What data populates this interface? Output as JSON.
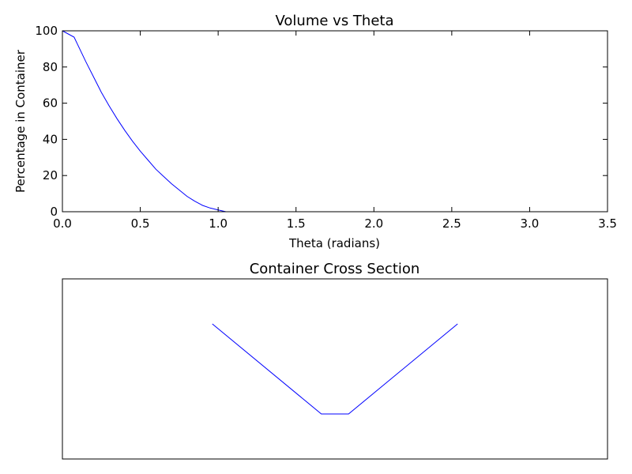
{
  "chart_data": [
    {
      "type": "line",
      "title": "Volume vs Theta",
      "xlabel": "Theta (radians)",
      "ylabel": "Percentage in Container",
      "xlim": [
        0.0,
        3.5
      ],
      "ylim": [
        0,
        100
      ],
      "xticks": [
        "0.0",
        "0.5",
        "1.0",
        "1.5",
        "2.0",
        "2.5",
        "3.0",
        "3.5"
      ],
      "yticks": [
        "0",
        "20",
        "40",
        "60",
        "80",
        "100"
      ],
      "grid": false,
      "color": "#0000ff",
      "series": [
        {
          "x": [
            0.0,
            0.075,
            0.1,
            0.15,
            0.2,
            0.25,
            0.3,
            0.35,
            0.4,
            0.45,
            0.5,
            0.55,
            0.6,
            0.65,
            0.7,
            0.75,
            0.8,
            0.85,
            0.9,
            0.95,
            1.0,
            1.05,
            1.1,
            1.5,
            2.0,
            2.5,
            3.0,
            3.14
          ],
          "y": [
            100,
            96.5,
            92,
            83,
            74.5,
            66,
            58.5,
            51.5,
            45,
            39,
            33.5,
            28.5,
            23.5,
            19.5,
            15.5,
            12,
            8.5,
            5.8,
            3.5,
            2.0,
            1.0,
            0,
            0,
            0,
            0,
            0,
            0,
            0
          ]
        }
      ]
    },
    {
      "type": "line",
      "title": "Container Cross Section",
      "xlabel": "",
      "ylabel": "",
      "xlim": [
        -5,
        5
      ],
      "ylim": [
        -1,
        5
      ],
      "axes_ticks": false,
      "color": "#0000ff",
      "series": [
        {
          "x": [
            -2.25,
            -0.25,
            0.25,
            2.25
          ],
          "y": [
            3.5,
            0.5,
            0.5,
            3.5
          ]
        }
      ]
    }
  ]
}
